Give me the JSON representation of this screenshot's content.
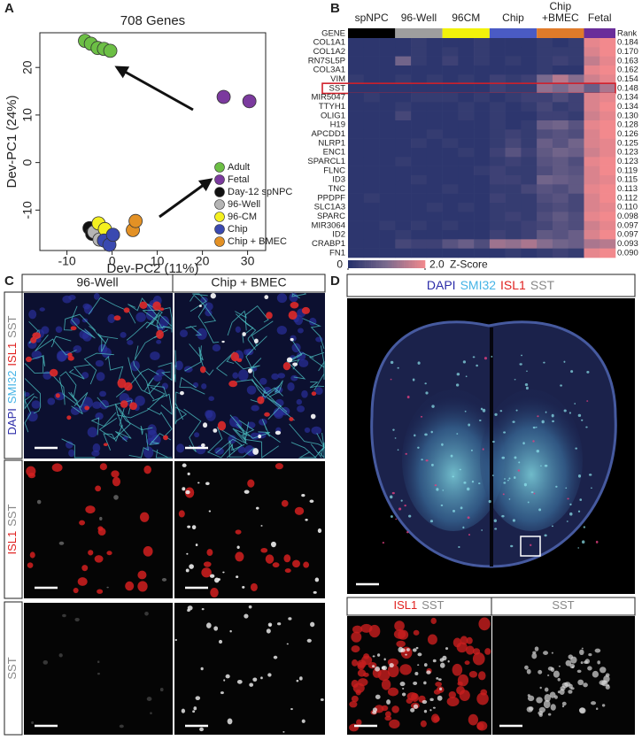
{
  "panel_labels": [
    "A",
    "B",
    "C",
    "D"
  ],
  "chart_data": [
    {
      "type": "scatter",
      "title": "708 Genes",
      "x_label": "Dev-PC2 (11%)",
      "y_label": "Dev-PC1 (24%)",
      "xlim": [
        -16,
        34
      ],
      "ylim": [
        -18.5,
        27.3
      ],
      "xticks": [
        -10,
        0,
        10,
        20,
        30
      ],
      "yticks": [
        -10,
        0,
        10,
        20
      ],
      "legend": "bottom-right",
      "series": [
        {
          "name": "Adult",
          "color": "#6cbf45",
          "x": [
            -6,
            -4.7,
            -3.2,
            -1.8,
            -0.4
          ],
          "y": [
            25.6,
            25,
            24.1,
            23.9,
            23.5
          ]
        },
        {
          "name": "Fetal",
          "color": "#7b3a9e",
          "x": [
            24.7,
            30.4
          ],
          "y": [
            13.8,
            12.9
          ]
        },
        {
          "name": "Day-12 spNPC",
          "color": "#111111",
          "x": [
            -5,
            -4.4
          ],
          "y": [
            -13.8,
            -15
          ]
        },
        {
          "name": "96-Well",
          "color": "#b5b5b5",
          "x": [
            -4,
            -2.8
          ],
          "y": [
            -14.6,
            -16.2
          ]
        },
        {
          "name": "96-CM",
          "color": "#f4f020",
          "x": [
            -3,
            -1.6
          ],
          "y": [
            -12.8,
            -14
          ]
        },
        {
          "name": "Chip",
          "color": "#3a49b0",
          "x": [
            -1.8,
            -0.6,
            0.2
          ],
          "y": [
            -16.4,
            -17.3,
            -15.2
          ]
        },
        {
          "name": "Chip + BMEC",
          "color": "#e39125",
          "x": [
            4.6,
            5.2
          ],
          "y": [
            -14.2,
            -12.3
          ]
        }
      ]
    },
    {
      "type": "heatmap",
      "row_header": "GENE",
      "rank_header": "Rank",
      "highlight": "SST",
      "zlim": [
        0,
        2
      ],
      "zticks": [
        0,
        {
          "value": 2,
          "label": "2.0"
        }
      ],
      "z_label": "Z-Score",
      "groups": [
        {
          "name": [
            "spNPC"
          ],
          "color": "#000000"
        },
        {
          "name": [
            "96-Well"
          ],
          "color": "#9e9e9e"
        },
        {
          "name": [
            "96CM"
          ],
          "color": "#f2f20a"
        },
        {
          "name": [
            "Chip"
          ],
          "color": "#4a5bc4"
        },
        {
          "name": [
            "Chip",
            "+BMEC"
          ],
          "color": "#e07b2a"
        },
        {
          "name": [
            "Fetal"
          ],
          "color": "#6a2d9a"
        }
      ],
      "rows": [
        {
          "gene": "COL1A1",
          "rank": 0.184,
          "values": [
            [
              0.1,
              0.1,
              0.1
            ],
            [
              0.1,
              0.2,
              0.1
            ],
            [
              0.1,
              0.1,
              0.2
            ],
            [
              0.1,
              0.1,
              0.1
            ],
            [
              0.2,
              0.1,
              0.2
            ],
            [
              1.9,
              2.0
            ]
          ]
        },
        {
          "gene": "COL1A2",
          "rank": {
            "value": 0.17,
            "label": "0.170"
          },
          "values": [
            [
              0.1,
              0.1,
              0.1
            ],
            [
              0.1,
              0.2,
              0.1
            ],
            [
              0.2,
              0.1,
              0.2
            ],
            [
              0.1,
              0.1,
              0.1
            ],
            [
              0.2,
              0.2,
              0.2
            ],
            [
              1.8,
              2.0
            ]
          ]
        },
        {
          "gene": "RN7SL5P",
          "rank": 0.163,
          "values": [
            [
              0.1,
              0.1,
              0.1
            ],
            [
              0.9,
              0.2,
              0.1
            ],
            [
              0.3,
              0.1,
              0.2
            ],
            [
              0.1,
              0.2,
              0.1
            ],
            [
              0.2,
              0.3,
              0.2
            ],
            [
              1.6,
              1.9
            ]
          ]
        },
        {
          "gene": "COL3A1",
          "rank": 0.162,
          "values": [
            [
              0.1,
              0.1,
              0.1
            ],
            [
              0.1,
              0.1,
              0.1
            ],
            [
              0.1,
              0.1,
              0.1
            ],
            [
              0.1,
              0.1,
              0.1
            ],
            [
              0.2,
              0.1,
              0.1
            ],
            [
              1.9,
              2.0
            ]
          ]
        },
        {
          "gene": "VIM",
          "rank": 0.154,
          "values": [
            [
              0.2,
              0.1,
              0.1
            ],
            [
              0.2,
              0.1,
              0.2
            ],
            [
              0.1,
              0.2,
              0.1
            ],
            [
              0.3,
              0.2,
              0.3
            ],
            [
              1.0,
              1.5,
              1.1
            ],
            [
              1.7,
              1.9
            ]
          ]
        },
        {
          "gene": "SST",
          "rank": 0.148,
          "values": [
            [
              0.1,
              0.1,
              0.1
            ],
            [
              0.1,
              0.1,
              0.1
            ],
            [
              0.1,
              0.1,
              0.1
            ],
            [
              0.3,
              0.2,
              0.2
            ],
            [
              1.2,
              1.0,
              1.3
            ],
            [
              0.8,
              1.4
            ]
          ]
        },
        {
          "gene": "MIR5047",
          "rank": 0.134,
          "values": [
            [
              0.1,
              0.2,
              0.1
            ],
            [
              0.1,
              0.2,
              0.2
            ],
            [
              0.2,
              0.1,
              0.2
            ],
            [
              0.1,
              0.2,
              0.3
            ],
            [
              0.3,
              0.5,
              0.3
            ],
            [
              1.8,
              1.9
            ]
          ]
        },
        {
          "gene": "TTYH1",
          "rank": 0.134,
          "values": [
            [
              0.1,
              0.1,
              0.1
            ],
            [
              0.2,
              0.1,
              0.1
            ],
            [
              0.1,
              0.2,
              0.1
            ],
            [
              0.2,
              0.1,
              0.2
            ],
            [
              0.4,
              0.2,
              0.3
            ],
            [
              1.8,
              2.0
            ]
          ]
        },
        {
          "gene": "OLIG1",
          "rank": {
            "value": 0.13,
            "label": "0.130"
          },
          "values": [
            [
              0.1,
              0.1,
              0.1
            ],
            [
              0.4,
              0.1,
              0.1
            ],
            [
              0.1,
              0.2,
              0.1
            ],
            [
              0.2,
              0.1,
              0.1
            ],
            [
              0.3,
              0.3,
              0.2
            ],
            [
              1.7,
              1.9
            ]
          ]
        },
        {
          "gene": "H19",
          "rank": 0.128,
          "values": [
            [
              0.1,
              0.1,
              0.1
            ],
            [
              0.1,
              0.1,
              0.1
            ],
            [
              0.1,
              0.1,
              0.1
            ],
            [
              0.2,
              0.1,
              0.2
            ],
            [
              0.8,
              0.9,
              0.6
            ],
            [
              1.9,
              2.0
            ]
          ]
        },
        {
          "gene": "APCDD1",
          "rank": 0.126,
          "values": [
            [
              0.1,
              0.1,
              0.1
            ],
            [
              0.1,
              0.1,
              0.2
            ],
            [
              0.1,
              0.1,
              0.1
            ],
            [
              0.2,
              0.3,
              0.2
            ],
            [
              0.5,
              0.6,
              0.5
            ],
            [
              1.8,
              2.0
            ]
          ]
        },
        {
          "gene": "NLRP1",
          "rank": 0.125,
          "values": [
            [
              0.1,
              0.1,
              0.1
            ],
            [
              0.1,
              0.2,
              0.1
            ],
            [
              0.2,
              0.1,
              0.1
            ],
            [
              0.2,
              0.4,
              0.2
            ],
            [
              0.8,
              0.6,
              0.9
            ],
            [
              1.8,
              1.9
            ]
          ]
        },
        {
          "gene": "ENC1",
          "rank": 0.123,
          "values": [
            [
              0.1,
              0.1,
              0.1
            ],
            [
              0.1,
              0.1,
              0.1
            ],
            [
              0.1,
              0.2,
              0.1
            ],
            [
              0.3,
              0.6,
              0.3
            ],
            [
              0.7,
              0.9,
              0.8
            ],
            [
              1.7,
              1.9
            ]
          ]
        },
        {
          "gene": "SPARCL1",
          "rank": 0.123,
          "values": [
            [
              0.1,
              0.1,
              0.1
            ],
            [
              0.2,
              0.1,
              0.1
            ],
            [
              0.1,
              0.1,
              0.1
            ],
            [
              0.2,
              0.3,
              0.2
            ],
            [
              0.6,
              0.7,
              0.5
            ],
            [
              1.9,
              2.0
            ]
          ]
        },
        {
          "gene": "FLNC",
          "rank": 0.119,
          "values": [
            [
              0.1,
              0.1,
              0.1
            ],
            [
              0.1,
              0.1,
              0.1
            ],
            [
              0.1,
              0.1,
              0.2
            ],
            [
              0.3,
              0.2,
              0.2
            ],
            [
              0.5,
              0.7,
              0.6
            ],
            [
              1.8,
              2.0
            ]
          ]
        },
        {
          "gene": "ID3",
          "rank": 0.115,
          "values": [
            [
              0.1,
              0.1,
              0.1
            ],
            [
              0.1,
              0.2,
              0.1
            ],
            [
              0.1,
              0.1,
              0.1
            ],
            [
              0.3,
              0.3,
              0.2
            ],
            [
              0.9,
              0.8,
              0.7
            ],
            [
              1.8,
              1.9
            ]
          ]
        },
        {
          "gene": "TNC",
          "rank": 0.113,
          "values": [
            [
              0.1,
              0.1,
              0.1
            ],
            [
              0.1,
              0.1,
              0.1
            ],
            [
              0.2,
              0.1,
              0.1
            ],
            [
              0.2,
              0.2,
              0.4
            ],
            [
              0.6,
              0.5,
              0.7
            ],
            [
              1.9,
              2.0
            ]
          ]
        },
        {
          "gene": "PPDPF",
          "rank": 0.112,
          "values": [
            [
              0.1,
              0.2,
              0.1
            ],
            [
              0.1,
              0.1,
              0.1
            ],
            [
              0.1,
              0.1,
              0.1
            ],
            [
              0.3,
              0.2,
              0.2
            ],
            [
              0.5,
              0.6,
              0.4
            ],
            [
              1.8,
              2.0
            ]
          ]
        },
        {
          "gene": "SLC1A3",
          "rank": {
            "value": 0.11,
            "label": "0.110"
          },
          "values": [
            [
              0.1,
              0.1,
              0.1
            ],
            [
              0.1,
              0.1,
              0.2
            ],
            [
              0.1,
              0.2,
              0.1
            ],
            [
              0.2,
              0.2,
              0.2
            ],
            [
              0.4,
              0.5,
              0.4
            ],
            [
              1.8,
              1.9
            ]
          ]
        },
        {
          "gene": "SPARC",
          "rank": 0.098,
          "values": [
            [
              0.1,
              0.1,
              0.1
            ],
            [
              0.1,
              0.1,
              0.1
            ],
            [
              0.1,
              0.1,
              0.1
            ],
            [
              0.2,
              0.3,
              0.2
            ],
            [
              0.5,
              0.7,
              0.5
            ],
            [
              1.9,
              2.0
            ]
          ]
        },
        {
          "gene": "MIR3064",
          "rank": 0.097,
          "values": [
            [
              0.1,
              0.1,
              0.2
            ],
            [
              0.1,
              0.2,
              0.1
            ],
            [
              0.2,
              0.1,
              0.1
            ],
            [
              0.2,
              0.2,
              0.3
            ],
            [
              0.4,
              0.6,
              0.5
            ],
            [
              1.7,
              1.9
            ]
          ]
        },
        {
          "gene": "ID2",
          "rank": 0.097,
          "values": [
            [
              0.1,
              0.1,
              0.1
            ],
            [
              0.2,
              0.1,
              0.1
            ],
            [
              0.1,
              0.1,
              0.1
            ],
            [
              0.3,
              0.2,
              0.3
            ],
            [
              0.7,
              0.6,
              0.8
            ],
            [
              1.8,
              2.0
            ]
          ]
        },
        {
          "gene": "CRABP1",
          "rank": 0.093,
          "values": [
            [
              0.1,
              0.1,
              0.1
            ],
            [
              0.4,
              0.3,
              0.3
            ],
            [
              0.6,
              0.8,
              0.5
            ],
            [
              1.3,
              1.2,
              1.4
            ],
            [
              1.1,
              0.9,
              0.8
            ],
            [
              1.4,
              1.5
            ]
          ]
        },
        {
          "gene": "FN1",
          "rank": {
            "value": 0.09,
            "label": "0.090"
          },
          "values": [
            [
              0.1,
              0.1,
              0.1
            ],
            [
              0.1,
              0.1,
              0.1
            ],
            [
              0.1,
              0.1,
              0.1
            ],
            [
              0.1,
              0.2,
              0.1
            ],
            [
              0.2,
              0.3,
              0.2
            ],
            [
              1.9,
              2.0
            ]
          ]
        }
      ]
    }
  ],
  "panel_c": {
    "columns": [
      "96-Well",
      "Chip + BMEC"
    ],
    "rows": [
      [
        {
          "text": "DAPI",
          "color": "#2b2ba8"
        },
        {
          "text": "SMI32",
          "color": "#45b4e6"
        },
        {
          "text": "ISL1",
          "color": "#e0211f"
        },
        {
          "text": "SST",
          "color": "#888888"
        }
      ],
      [
        {
          "text": "ISL1",
          "color": "#e0211f"
        },
        {
          "text": "SST",
          "color": "#888888"
        }
      ],
      [
        {
          "text": "SST",
          "color": "#888888"
        }
      ]
    ]
  },
  "panel_d": {
    "title": [
      {
        "text": "DAPI",
        "color": "#2b2ba8"
      },
      {
        "text": "SMI32",
        "color": "#45b4e6"
      },
      {
        "text": "ISL1",
        "color": "#e0211f"
      },
      {
        "text": "SST",
        "color": "#888888"
      }
    ],
    "insets": [
      [
        {
          "text": "ISL1",
          "color": "#e0211f"
        },
        {
          "text": "SST",
          "color": "#888888"
        }
      ],
      [
        {
          "text": "SST",
          "color": "#888888"
        }
      ]
    ]
  }
}
